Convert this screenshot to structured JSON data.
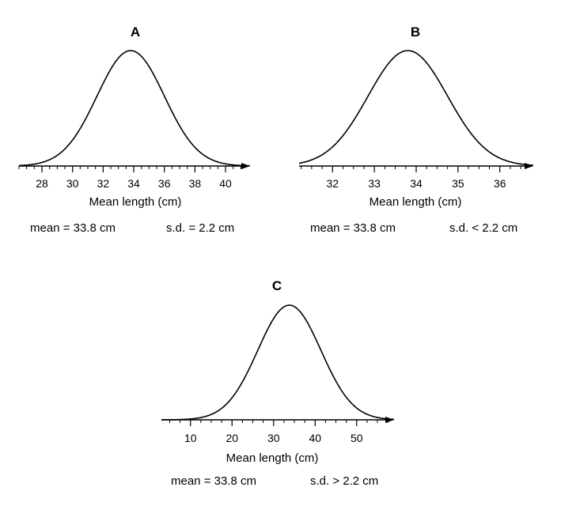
{
  "chart_data": [
    {
      "type": "line",
      "title": "A",
      "xlabel": "Mean length (cm)",
      "ylabel": "",
      "curve": "normal distribution",
      "mean": 33.8,
      "sd": 2.2,
      "xlim": [
        26.5,
        41.6
      ],
      "major_ticks": [
        28,
        30,
        32,
        34,
        36,
        38,
        40
      ],
      "tick_labels": [
        "28",
        "30",
        "32",
        "34",
        "36",
        "38",
        "40"
      ],
      "minor_tick_step": 0.5,
      "stats": {
        "mean_text": "mean = 33.8 cm",
        "sd_text": "s.d. = 2.2 cm"
      }
    },
    {
      "type": "line",
      "title": "B",
      "xlabel": "Mean length (cm)",
      "ylabel": "",
      "curve": "normal distribution",
      "mean": 33.8,
      "sd": 0.95,
      "xlim": [
        31.2,
        36.8
      ],
      "major_ticks": [
        32,
        33,
        34,
        35,
        36
      ],
      "tick_labels": [
        "32",
        "33",
        "34",
        "35",
        "36"
      ],
      "minor_tick_step": 0.25,
      "stats": {
        "mean_text": "mean = 33.8 cm",
        "sd_text": "s.d. < 2.2 cm"
      }
    },
    {
      "type": "line",
      "title": "C",
      "xlabel": "Mean length (cm)",
      "ylabel": "",
      "curve": "normal distribution",
      "mean": 33.8,
      "sd": 7.6,
      "xlim": [
        3,
        59
      ],
      "major_ticks": [
        10,
        20,
        30,
        40,
        50
      ],
      "tick_labels": [
        "10",
        "20",
        "30",
        "40",
        "50"
      ],
      "minor_tick_step": 2.5,
      "stats": {
        "mean_text": "mean = 33.8 cm",
        "sd_text": "s.d. > 2.2 cm"
      }
    }
  ]
}
